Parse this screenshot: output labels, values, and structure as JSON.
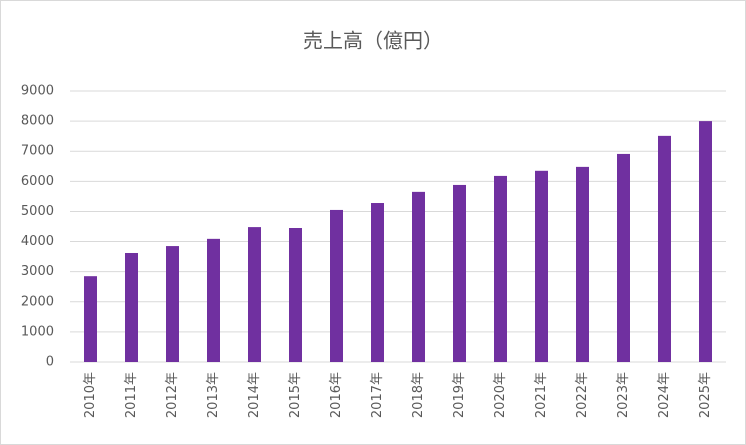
{
  "chart_data": {
    "type": "bar",
    "title": "売上高（億円）",
    "categories": [
      "2010年",
      "2011年",
      "2012年",
      "2013年",
      "2014年",
      "2015年",
      "2016年",
      "2017年",
      "2018年",
      "2019年",
      "2020年",
      "2021年",
      "2022年",
      "2023年",
      "2024年",
      "2025年"
    ],
    "values": [
      2850,
      3620,
      3850,
      4090,
      4480,
      4450,
      5050,
      5280,
      5650,
      5880,
      6180,
      6350,
      6480,
      6910,
      7510,
      8000
    ],
    "color": "#7030a0",
    "ylim": [
      0,
      9000
    ],
    "yticks": [
      0,
      1000,
      2000,
      3000,
      4000,
      5000,
      6000,
      7000,
      8000,
      9000
    ],
    "grid": true
  }
}
